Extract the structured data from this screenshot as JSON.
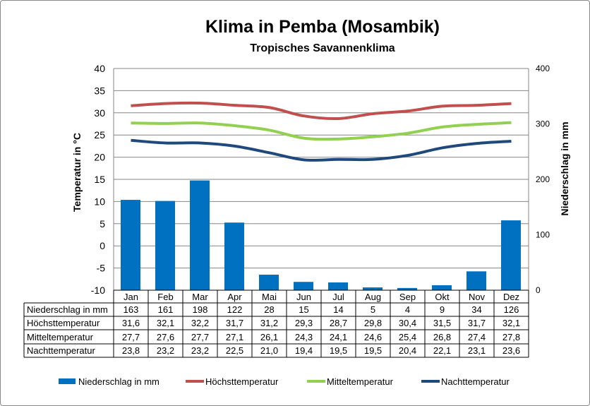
{
  "chart_data": {
    "type": "bar+line",
    "title": "Klima in Pemba (Mosambik)",
    "subtitle": "Tropisches Savannenklima",
    "ylabel": "Temperatur in °C",
    "y2label": "Niederschlag in mm",
    "ylim": [
      -10,
      40
    ],
    "yticks": [
      -10,
      -5,
      0,
      5,
      10,
      15,
      20,
      25,
      30,
      35,
      40
    ],
    "y2lim": [
      0,
      400
    ],
    "y2ticks": [
      0,
      100,
      200,
      300,
      400
    ],
    "grid": true,
    "legend_placement": "bottom",
    "categories": [
      "Jan",
      "Feb",
      "Mar",
      "Apr",
      "Mai",
      "Jun",
      "Jul",
      "Aug",
      "Sep",
      "Okt",
      "Nov",
      "Dez"
    ],
    "series": [
      {
        "name": "Niederschlag in mm",
        "type": "bar",
        "axis": "right",
        "color": "#0070c0",
        "values": [
          163,
          161,
          198,
          122,
          28,
          15,
          14,
          5,
          4,
          9,
          34,
          126
        ],
        "labels": [
          "163",
          "161",
          "198",
          "122",
          "28",
          "15",
          "14",
          "5",
          "4",
          "9",
          "34",
          "126"
        ]
      },
      {
        "name": "Höchsttemperatur",
        "type": "line",
        "axis": "left",
        "color": "#c0504d",
        "values": [
          31.6,
          32.1,
          32.2,
          31.7,
          31.2,
          29.3,
          28.7,
          29.8,
          30.4,
          31.5,
          31.7,
          32.1
        ],
        "labels": [
          "31,6",
          "32,1",
          "32,2",
          "31,7",
          "31,2",
          "29,3",
          "28,7",
          "29,8",
          "30,4",
          "31,5",
          "31,7",
          "32,1"
        ]
      },
      {
        "name": "Mitteltemperatur",
        "type": "line",
        "axis": "left",
        "color": "#92d050",
        "values": [
          27.7,
          27.6,
          27.7,
          27.1,
          26.1,
          24.3,
          24.1,
          24.6,
          25.4,
          26.8,
          27.4,
          27.8
        ],
        "labels": [
          "27,7",
          "27,6",
          "27,7",
          "27,1",
          "26,1",
          "24,3",
          "24,1",
          "24,6",
          "25,4",
          "26,8",
          "27,4",
          "27,8"
        ]
      },
      {
        "name": "Nachttemperatur",
        "type": "line",
        "axis": "left",
        "color": "#1f497d",
        "values": [
          23.8,
          23.2,
          23.2,
          22.5,
          21.0,
          19.4,
          19.5,
          19.5,
          20.4,
          22.1,
          23.1,
          23.6
        ],
        "labels": [
          "23,8",
          "23,2",
          "23,2",
          "22,5",
          "21,0",
          "19,4",
          "19,5",
          "19,5",
          "20,4",
          "22,1",
          "23,1",
          "23,6"
        ]
      }
    ]
  }
}
